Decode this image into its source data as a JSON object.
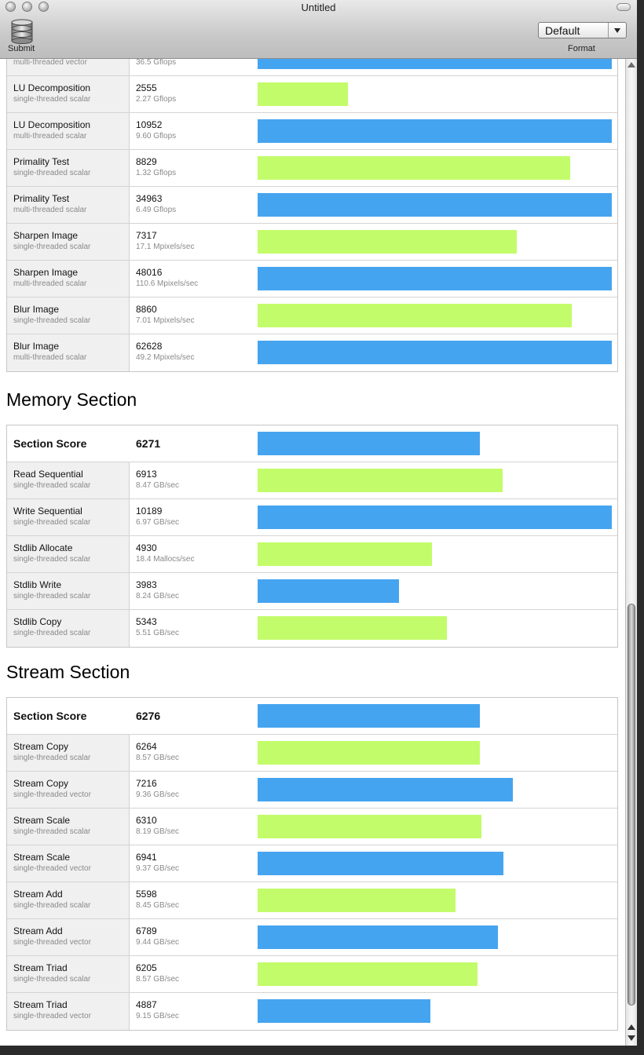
{
  "window": {
    "title": "Untitled"
  },
  "toolbar": {
    "submit_label": "Submit",
    "submit_icon": "database-icon",
    "format_label": "Format",
    "format_value": "Default"
  },
  "colors": {
    "green_bar": "#c2fc6a",
    "blue_bar": "#45a4f0"
  },
  "bar_scale_max": 10000,
  "top_table": {
    "rows": [
      {
        "name": "",
        "sub": "multi-threaded vector",
        "score": "",
        "unit": "36.5 Gflops",
        "color": "blue",
        "value": 10000
      },
      {
        "name": "LU Decomposition",
        "sub": "single-threaded scalar",
        "score": "2555",
        "unit": "2.27 Gflops",
        "color": "green",
        "value": 2555
      },
      {
        "name": "LU Decomposition",
        "sub": "multi-threaded scalar",
        "score": "10952",
        "unit": "9.60 Gflops",
        "color": "blue",
        "value": 10952
      },
      {
        "name": "Primality Test",
        "sub": "single-threaded scalar",
        "score": "8829",
        "unit": "1.32 Gflops",
        "color": "green",
        "value": 8829
      },
      {
        "name": "Primality Test",
        "sub": "multi-threaded scalar",
        "score": "34963",
        "unit": "6.49 Gflops",
        "color": "blue",
        "value": 34963
      },
      {
        "name": "Sharpen Image",
        "sub": "single-threaded scalar",
        "score": "7317",
        "unit": "17.1 Mpixels/sec",
        "color": "green",
        "value": 7317
      },
      {
        "name": "Sharpen Image",
        "sub": "multi-threaded scalar",
        "score": "48016",
        "unit": "110.6 Mpixels/sec",
        "color": "blue",
        "value": 48016
      },
      {
        "name": "Blur Image",
        "sub": "single-threaded scalar",
        "score": "8860",
        "unit": "7.01 Mpixels/sec",
        "color": "green",
        "value": 8860
      },
      {
        "name": "Blur Image",
        "sub": "multi-threaded scalar",
        "score": "62628",
        "unit": "49.2 Mpixels/sec",
        "color": "blue",
        "value": 62628
      }
    ]
  },
  "memory": {
    "title": "Memory Section",
    "section_score_label": "Section Score",
    "section_score": "6271",
    "section_score_value": 6271,
    "rows": [
      {
        "name": "Read Sequential",
        "sub": "single-threaded scalar",
        "score": "6913",
        "unit": "8.47 GB/sec",
        "color": "green",
        "value": 6913
      },
      {
        "name": "Write Sequential",
        "sub": "single-threaded scalar",
        "score": "10189",
        "unit": "6.97 GB/sec",
        "color": "blue",
        "value": 10189
      },
      {
        "name": "Stdlib Allocate",
        "sub": "single-threaded scalar",
        "score": "4930",
        "unit": "18.4 Mallocs/sec",
        "color": "green",
        "value": 4930
      },
      {
        "name": "Stdlib Write",
        "sub": "single-threaded scalar",
        "score": "3983",
        "unit": "8.24 GB/sec",
        "color": "blue",
        "value": 3983
      },
      {
        "name": "Stdlib Copy",
        "sub": "single-threaded scalar",
        "score": "5343",
        "unit": "5.51 GB/sec",
        "color": "green",
        "value": 5343
      }
    ]
  },
  "stream": {
    "title": "Stream Section",
    "section_score_label": "Section Score",
    "section_score": "6276",
    "section_score_value": 6276,
    "rows": [
      {
        "name": "Stream Copy",
        "sub": "single-threaded scalar",
        "score": "6264",
        "unit": "8.57 GB/sec",
        "color": "green",
        "value": 6264
      },
      {
        "name": "Stream Copy",
        "sub": "single-threaded vector",
        "score": "7216",
        "unit": "9.36 GB/sec",
        "color": "blue",
        "value": 7216
      },
      {
        "name": "Stream Scale",
        "sub": "single-threaded scalar",
        "score": "6310",
        "unit": "8.19 GB/sec",
        "color": "green",
        "value": 6310
      },
      {
        "name": "Stream Scale",
        "sub": "single-threaded vector",
        "score": "6941",
        "unit": "9.37 GB/sec",
        "color": "blue",
        "value": 6941
      },
      {
        "name": "Stream Add",
        "sub": "single-threaded scalar",
        "score": "5598",
        "unit": "8.45 GB/sec",
        "color": "green",
        "value": 5598
      },
      {
        "name": "Stream Add",
        "sub": "single-threaded vector",
        "score": "6789",
        "unit": "9.44 GB/sec",
        "color": "blue",
        "value": 6789
      },
      {
        "name": "Stream Triad",
        "sub": "single-threaded scalar",
        "score": "6205",
        "unit": "8.57 GB/sec",
        "color": "green",
        "value": 6205
      },
      {
        "name": "Stream Triad",
        "sub": "single-threaded vector",
        "score": "4887",
        "unit": "9.15 GB/sec",
        "color": "blue",
        "value": 4887
      }
    ]
  }
}
